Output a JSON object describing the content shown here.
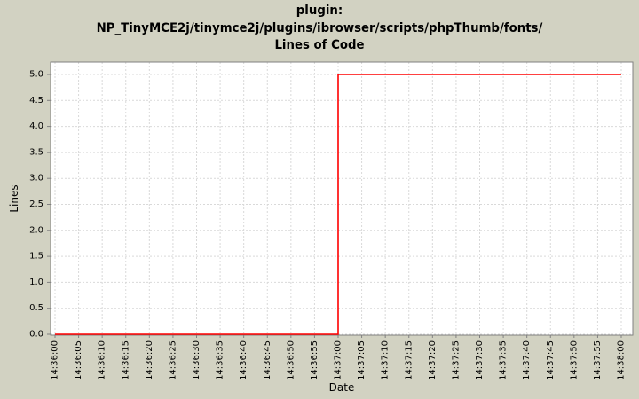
{
  "window": {
    "background_color": "#d2d2c2"
  },
  "chart_data": {
    "type": "line",
    "title_lines": [
      "plugin:",
      "NP_TinyMCE2j/tinymce2j/plugins/ibrowser/scripts/phpThumb/fonts/",
      "Lines of Code"
    ],
    "xlabel": "Date",
    "ylabel": "Lines",
    "x_ticks": [
      "14:36:00",
      "14:36:05",
      "14:36:10",
      "14:36:15",
      "14:36:20",
      "14:36:25",
      "14:36:30",
      "14:36:35",
      "14:36:40",
      "14:36:45",
      "14:36:50",
      "14:36:55",
      "14:37:00",
      "14:37:05",
      "14:37:10",
      "14:37:15",
      "14:37:20",
      "14:37:25",
      "14:37:30",
      "14:37:35",
      "14:37:40",
      "14:37:45",
      "14:37:50",
      "14:37:55",
      "14:38:00"
    ],
    "y_ticks": [
      "0.0",
      "0.5",
      "1.0",
      "1.5",
      "2.0",
      "2.5",
      "3.0",
      "3.5",
      "4.0",
      "4.5",
      "5.0"
    ],
    "ylim": [
      0,
      5
    ],
    "grid": "dashed",
    "legend": "none",
    "series": [
      {
        "name": "Lines of Code",
        "color": "#ff0000",
        "points": [
          {
            "t": "14:36:00",
            "v": 0
          },
          {
            "t": "14:37:00",
            "v": 0
          },
          {
            "t": "14:37:00",
            "v": 5
          },
          {
            "t": "14:38:00",
            "v": 5
          }
        ]
      }
    ],
    "colors": {
      "plot_background": "#ffffff",
      "gridline": "#d9d9d9",
      "axis_outline": "#808080",
      "tick_text": "#000000"
    }
  }
}
